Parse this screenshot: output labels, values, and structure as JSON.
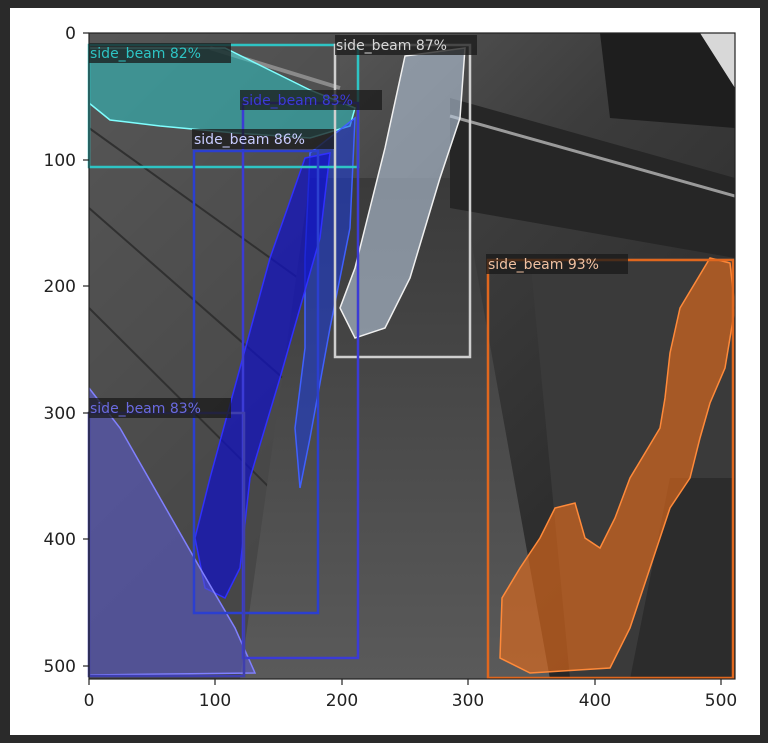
{
  "figure": {
    "axes": {
      "x_ticks": [
        "0",
        "100",
        "200",
        "300",
        "400",
        "500"
      ],
      "y_ticks": [
        "0",
        "100",
        "200",
        "300",
        "400",
        "500"
      ]
    }
  },
  "detections": [
    {
      "label": "side_beam 82%",
      "color": "#2ec4c4"
    },
    {
      "label": "side_beam 87%",
      "color": "#d0d0d0"
    },
    {
      "label": "side_beam 83%",
      "color": "#3b3bd6"
    },
    {
      "label": "side_beam 86%",
      "color": "#2b3fd0"
    },
    {
      "label": "side_beam 93%",
      "color": "#e0671e"
    },
    {
      "label": "side_beam 83%",
      "color": "#3f3fae"
    }
  ]
}
